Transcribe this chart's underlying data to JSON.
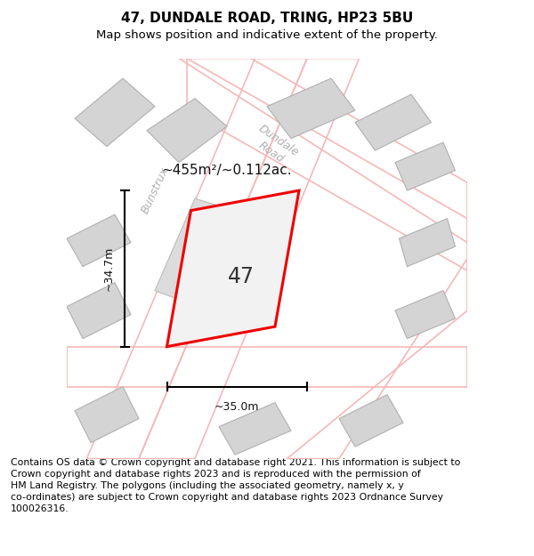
{
  "title": "47, DUNDALE ROAD, TRING, HP23 5BU",
  "subtitle": "Map shows position and indicative extent of the property.",
  "footer": "Contains OS data © Crown copyright and database right 2021. This information is subject to\nCrown copyright and database rights 2023 and is reproduced with the permission of\nHM Land Registry. The polygons (including the associated geometry, namely x, y\nco-ordinates) are subject to Crown copyright and database rights 2023 Ordnance Survey\n100026316.",
  "background_color": "#ffffff",
  "area_label": "~455m²/~0.112ac.",
  "number_label": "47",
  "width_label": "~35.0m",
  "height_label": "~34.7m",
  "road_label_1": "Bunstrux",
  "road_label_2": "Dundale\nRoad",
  "plot_color": "#ee0000",
  "plot_fill": "#f2f2f2",
  "building_fill": "#d4d4d4",
  "building_edge": "#b0b0b0",
  "road_stripe_color": "#f5b8b8",
  "title_fontsize": 11,
  "subtitle_fontsize": 9.5,
  "footer_fontsize": 7.8,
  "map_xlim": [
    0,
    100
  ],
  "map_ylim": [
    0,
    100
  ]
}
